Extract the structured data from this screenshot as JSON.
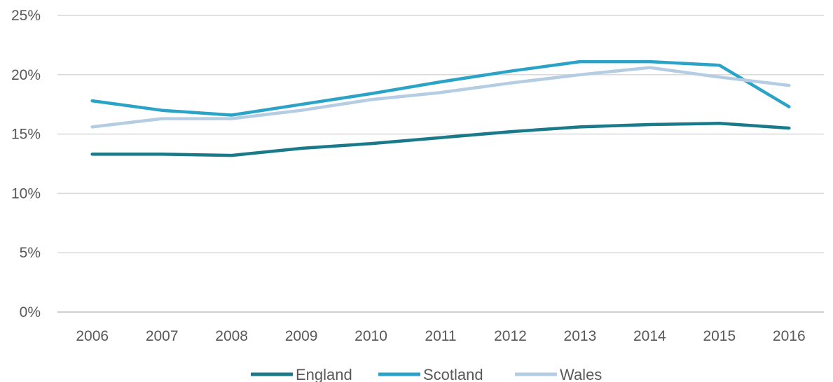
{
  "chart_data": {
    "type": "line",
    "title": "",
    "xlabel": "",
    "ylabel": "",
    "x": [
      "2006",
      "2007",
      "2008",
      "2009",
      "2010",
      "2011",
      "2012",
      "2013",
      "2014",
      "2015",
      "2016"
    ],
    "ylim": [
      0,
      25
    ],
    "yticks": [
      0,
      5,
      10,
      15,
      20,
      25
    ],
    "ytick_labels": [
      "0%",
      "5%",
      "10%",
      "15%",
      "20%",
      "25%"
    ],
    "grid": true,
    "legend_position": "bottom",
    "series": [
      {
        "name": "England",
        "color": "#1a7a8a",
        "values": [
          13.3,
          13.3,
          13.2,
          13.8,
          14.2,
          14.7,
          15.2,
          15.6,
          15.8,
          15.9,
          15.5
        ]
      },
      {
        "name": "Scotland",
        "color": "#2aa3c6",
        "values": [
          17.8,
          17.0,
          16.6,
          17.5,
          18.4,
          19.4,
          20.3,
          21.1,
          21.1,
          20.8,
          17.3
        ]
      },
      {
        "name": "Wales",
        "color": "#b4cde3",
        "values": [
          15.6,
          16.3,
          16.3,
          17.0,
          17.9,
          18.5,
          19.3,
          20.0,
          20.6,
          19.8,
          19.1
        ]
      }
    ]
  }
}
